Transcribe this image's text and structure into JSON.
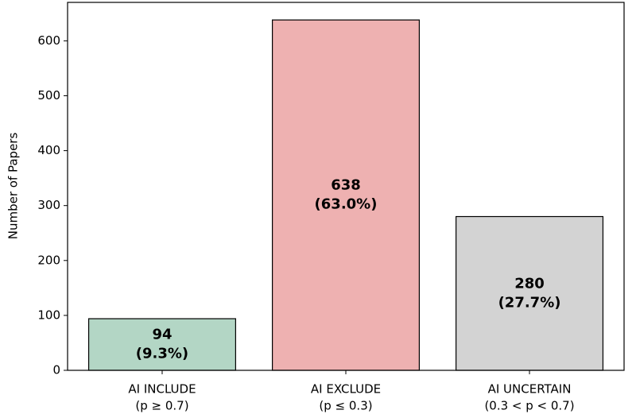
{
  "chart_data": {
    "type": "bar",
    "y_label": "Number of Papers",
    "categories": [
      [
        "AI INCLUDE",
        "(p ≥ 0.7)"
      ],
      [
        "AI EXCLUDE",
        "(p ≤ 0.3)"
      ],
      [
        "AI UNCERTAIN",
        "(0.3 < p < 0.7)"
      ]
    ],
    "values": [
      94,
      638,
      280
    ],
    "value_labels": [
      [
        "94",
        "(9.3%)"
      ],
      [
        "638",
        "(63.0%)"
      ],
      [
        "280",
        "(27.7%)"
      ]
    ],
    "colors": [
      "#b3d6c5",
      "#eeb1b1",
      "#d3d3d3"
    ],
    "ylim": [
      0,
      670
    ],
    "yticks": [
      0,
      100,
      200,
      300,
      400,
      500,
      600
    ],
    "grid": false
  }
}
